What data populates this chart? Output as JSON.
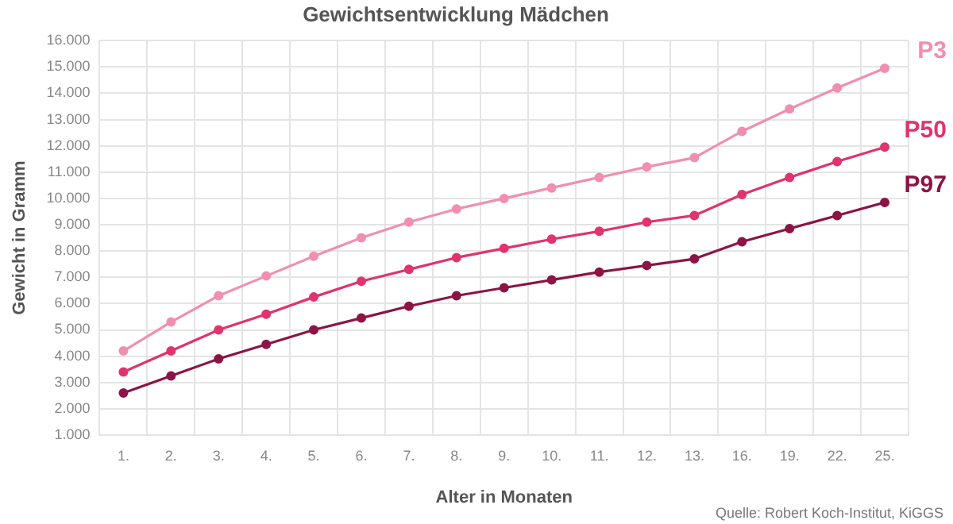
{
  "chart_data": {
    "type": "line",
    "title": "Gewichtsentwicklung Mädchen",
    "xlabel": "Alter in Monaten",
    "ylabel": "Gewicht in Gramm",
    "annotations": [
      "Quelle: Robert Koch-Institut, KiGGS"
    ],
    "categories": [
      "1.",
      "2.",
      "3.",
      "4.",
      "5.",
      "6.",
      "7.",
      "8.",
      "9.",
      "10.",
      "11.",
      "12.",
      "13.",
      "16.",
      "19.",
      "22.",
      "25."
    ],
    "ylim": [
      1000,
      16000
    ],
    "yticks": [
      {
        "value": 1000,
        "label": "1.000"
      },
      {
        "value": 2000,
        "label": "2.000"
      },
      {
        "value": 3000,
        "label": "3.000"
      },
      {
        "value": 4000,
        "label": "4.000"
      },
      {
        "value": 5000,
        "label": "5.000"
      },
      {
        "value": 6000,
        "label": "6.000"
      },
      {
        "value": 7000,
        "label": "7.000"
      },
      {
        "value": 8000,
        "label": "8.000"
      },
      {
        "value": 9000,
        "label": "9.000"
      },
      {
        "value": 10000,
        "label": "10.000"
      },
      {
        "value": 11000,
        "label": "11.000"
      },
      {
        "value": 12000,
        "label": "12.000"
      },
      {
        "value": 13000,
        "label": "13.000"
      },
      {
        "value": 14000,
        "label": "14.000"
      },
      {
        "value": 15000,
        "label": "15.000"
      },
      {
        "value": 16000,
        "label": "16.000"
      }
    ],
    "grid": true,
    "legend": false,
    "marker": "circle",
    "line_style": "solid",
    "series": [
      {
        "name": "P3",
        "color": "#f08fae",
        "values": [
          4200,
          5300,
          6300,
          7050,
          7800,
          8500,
          9100,
          9600,
          10000,
          10400,
          10800,
          11200,
          11550,
          12550,
          13400,
          14200,
          14950
        ]
      },
      {
        "name": "P50",
        "color": "#e0336f",
        "values": [
          3400,
          4200,
          5000,
          5600,
          6250,
          6850,
          7300,
          7750,
          8100,
          8450,
          8750,
          9100,
          9350,
          10150,
          10800,
          11400,
          11950
        ]
      },
      {
        "name": "P97",
        "color": "#8c1446",
        "values": [
          2600,
          3250,
          3900,
          4450,
          5000,
          5450,
          5900,
          6300,
          6600,
          6900,
          7200,
          7450,
          7700,
          8350,
          8850,
          9350,
          9850
        ]
      }
    ]
  }
}
